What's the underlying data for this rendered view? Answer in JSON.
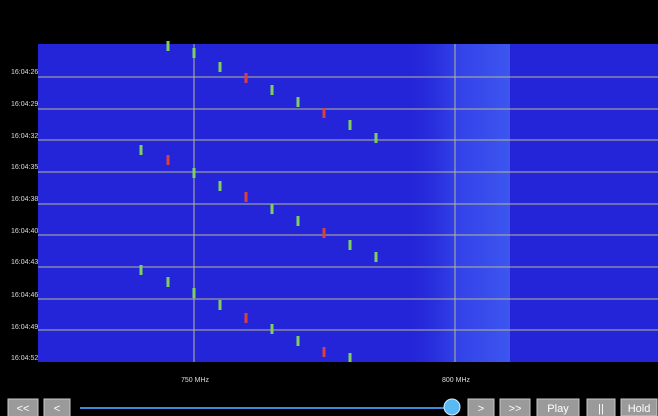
{
  "time_labels": [
    "16:04:26",
    "16:04:29",
    "16:04:32",
    "16:04:35",
    "16:04:38",
    "16:04:40",
    "16:04:43",
    "16:04:46",
    "16:04:49",
    "16:04:52"
  ],
  "freq_labels": [
    "750 MHz",
    "800 MHz"
  ],
  "controls": [
    "<<",
    "<",
    ">",
    ">>",
    "Play",
    "||",
    "Hold"
  ]
}
